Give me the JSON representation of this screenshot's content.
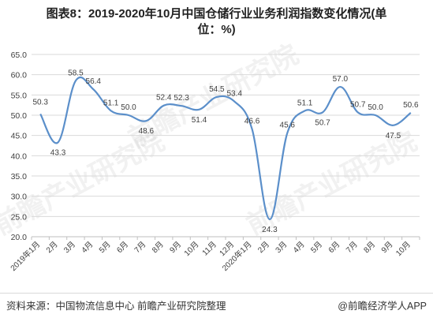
{
  "title_line1": "图表8：2019-2020年10月中国仓储行业业务利润指数变化情况(单",
  "title_line2": "位：%)",
  "source": "资料来源：中国物流信息中心 前瞻产业研究院整理",
  "brand": "@前瞻经济学人APP",
  "watermark": "前瞻产业研究院",
  "colors": {
    "line": "#5b8fca",
    "grid": "#d9d9d9",
    "axis": "#bfbfbf",
    "label": "#404040"
  },
  "chart_data": {
    "type": "line",
    "title": "图表8：2019-2020年10月中国仓储行业业务利润指数变化情况(单位：%)",
    "categories": [
      "2019年1月",
      "2月",
      "3月",
      "4月",
      "5月",
      "6月",
      "7月",
      "8月",
      "9月",
      "10月",
      "11月",
      "12月",
      "2020年1月",
      "2月",
      "3月",
      "4月",
      "5月",
      "6月",
      "7月",
      "8月",
      "9月",
      "10月"
    ],
    "values": [
      50.3,
      43.3,
      58.5,
      56.4,
      51.1,
      50.0,
      48.6,
      52.4,
      52.3,
      51.4,
      54.5,
      53.4,
      46.6,
      24.3,
      45.6,
      51.1,
      50.7,
      57.0,
      50.7,
      50.0,
      47.5,
      50.6
    ],
    "ylim": [
      20,
      65
    ],
    "yticks": [
      "20.0",
      "25.0",
      "30.0",
      "35.0",
      "40.0",
      "45.0",
      "50.0",
      "55.0",
      "60.0",
      "65.0"
    ],
    "grid": true,
    "legend": "none",
    "smooth": true
  }
}
